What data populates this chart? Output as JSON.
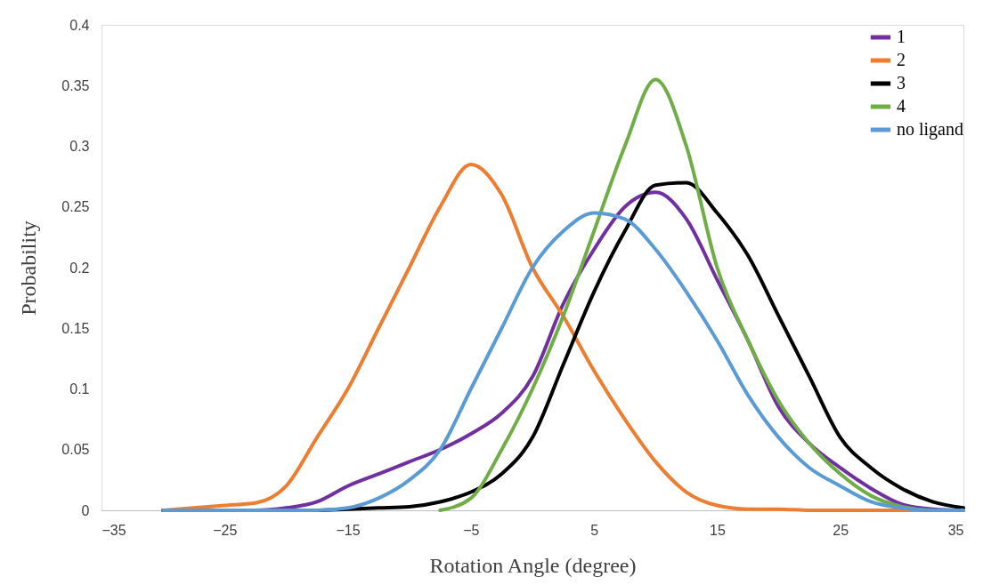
{
  "chart_data": {
    "type": "line",
    "xlabel": "Rotation Angle (degree)",
    "ylabel": "Probability",
    "x": [
      -30,
      -25,
      -22.5,
      -20,
      -17.5,
      -15,
      -12.5,
      -10,
      -7.5,
      -5,
      -2.5,
      0,
      2.5,
      5,
      7.5,
      10,
      12.5,
      15,
      17.5,
      20,
      22.5,
      25,
      27.5,
      30,
      32.5,
      35
    ],
    "series": [
      {
        "name": "1",
        "color": "#7030a0",
        "values": [
          0,
          0,
          0,
          0.002,
          0.007,
          0.02,
          0.03,
          0.04,
          0.05,
          0.063,
          0.08,
          0.11,
          0.17,
          0.215,
          0.25,
          0.262,
          0.24,
          0.19,
          0.14,
          0.085,
          0.055,
          0.035,
          0.018,
          0.005,
          0.001,
          0
        ]
      },
      {
        "name": "2",
        "color": "#ed7d31",
        "values": [
          0,
          0.004,
          0.006,
          0.02,
          0.06,
          0.1,
          0.15,
          0.2,
          0.25,
          0.285,
          0.26,
          0.2,
          0.16,
          0.115,
          0.075,
          0.04,
          0.015,
          0.004,
          0.001,
          0.001,
          0,
          0,
          0,
          0,
          0,
          0
        ]
      },
      {
        "name": "3",
        "color": "#000000",
        "values": [
          0,
          0,
          0,
          0,
          0,
          0.001,
          0.002,
          0.003,
          0.007,
          0.015,
          0.03,
          0.06,
          0.12,
          0.18,
          0.23,
          0.268,
          0.27,
          0.245,
          0.21,
          0.16,
          0.11,
          0.06,
          0.035,
          0.018,
          0.007,
          0.002
        ]
      },
      {
        "name": "4",
        "color": "#70ad47",
        "values": [
          null,
          null,
          null,
          null,
          null,
          null,
          null,
          null,
          0,
          0.01,
          0.05,
          0.1,
          0.16,
          0.23,
          0.3,
          0.355,
          0.3,
          0.2,
          0.14,
          0.09,
          0.055,
          0.03,
          0.012,
          0.003,
          0,
          0
        ]
      },
      {
        "name": "no ligand",
        "color": "#5b9bd5",
        "values": [
          0,
          0,
          0,
          0,
          0,
          0.002,
          0.01,
          0.025,
          0.05,
          0.1,
          0.15,
          0.2,
          0.23,
          0.245,
          0.24,
          0.215,
          0.18,
          0.14,
          0.095,
          0.06,
          0.035,
          0.02,
          0.007,
          0.002,
          0,
          0
        ]
      }
    ],
    "xlim": [
      -35,
      35
    ],
    "xticks": [
      -35,
      -25,
      -15,
      -5,
      5,
      15,
      25,
      35
    ],
    "ylim": [
      0,
      0.4
    ],
    "yticks": [
      0,
      0.05,
      0.1,
      0.15,
      0.2,
      0.25,
      0.3,
      0.35,
      0.4
    ],
    "grid": false,
    "legend": "top right",
    "marker": "none",
    "line_style": "solid"
  }
}
